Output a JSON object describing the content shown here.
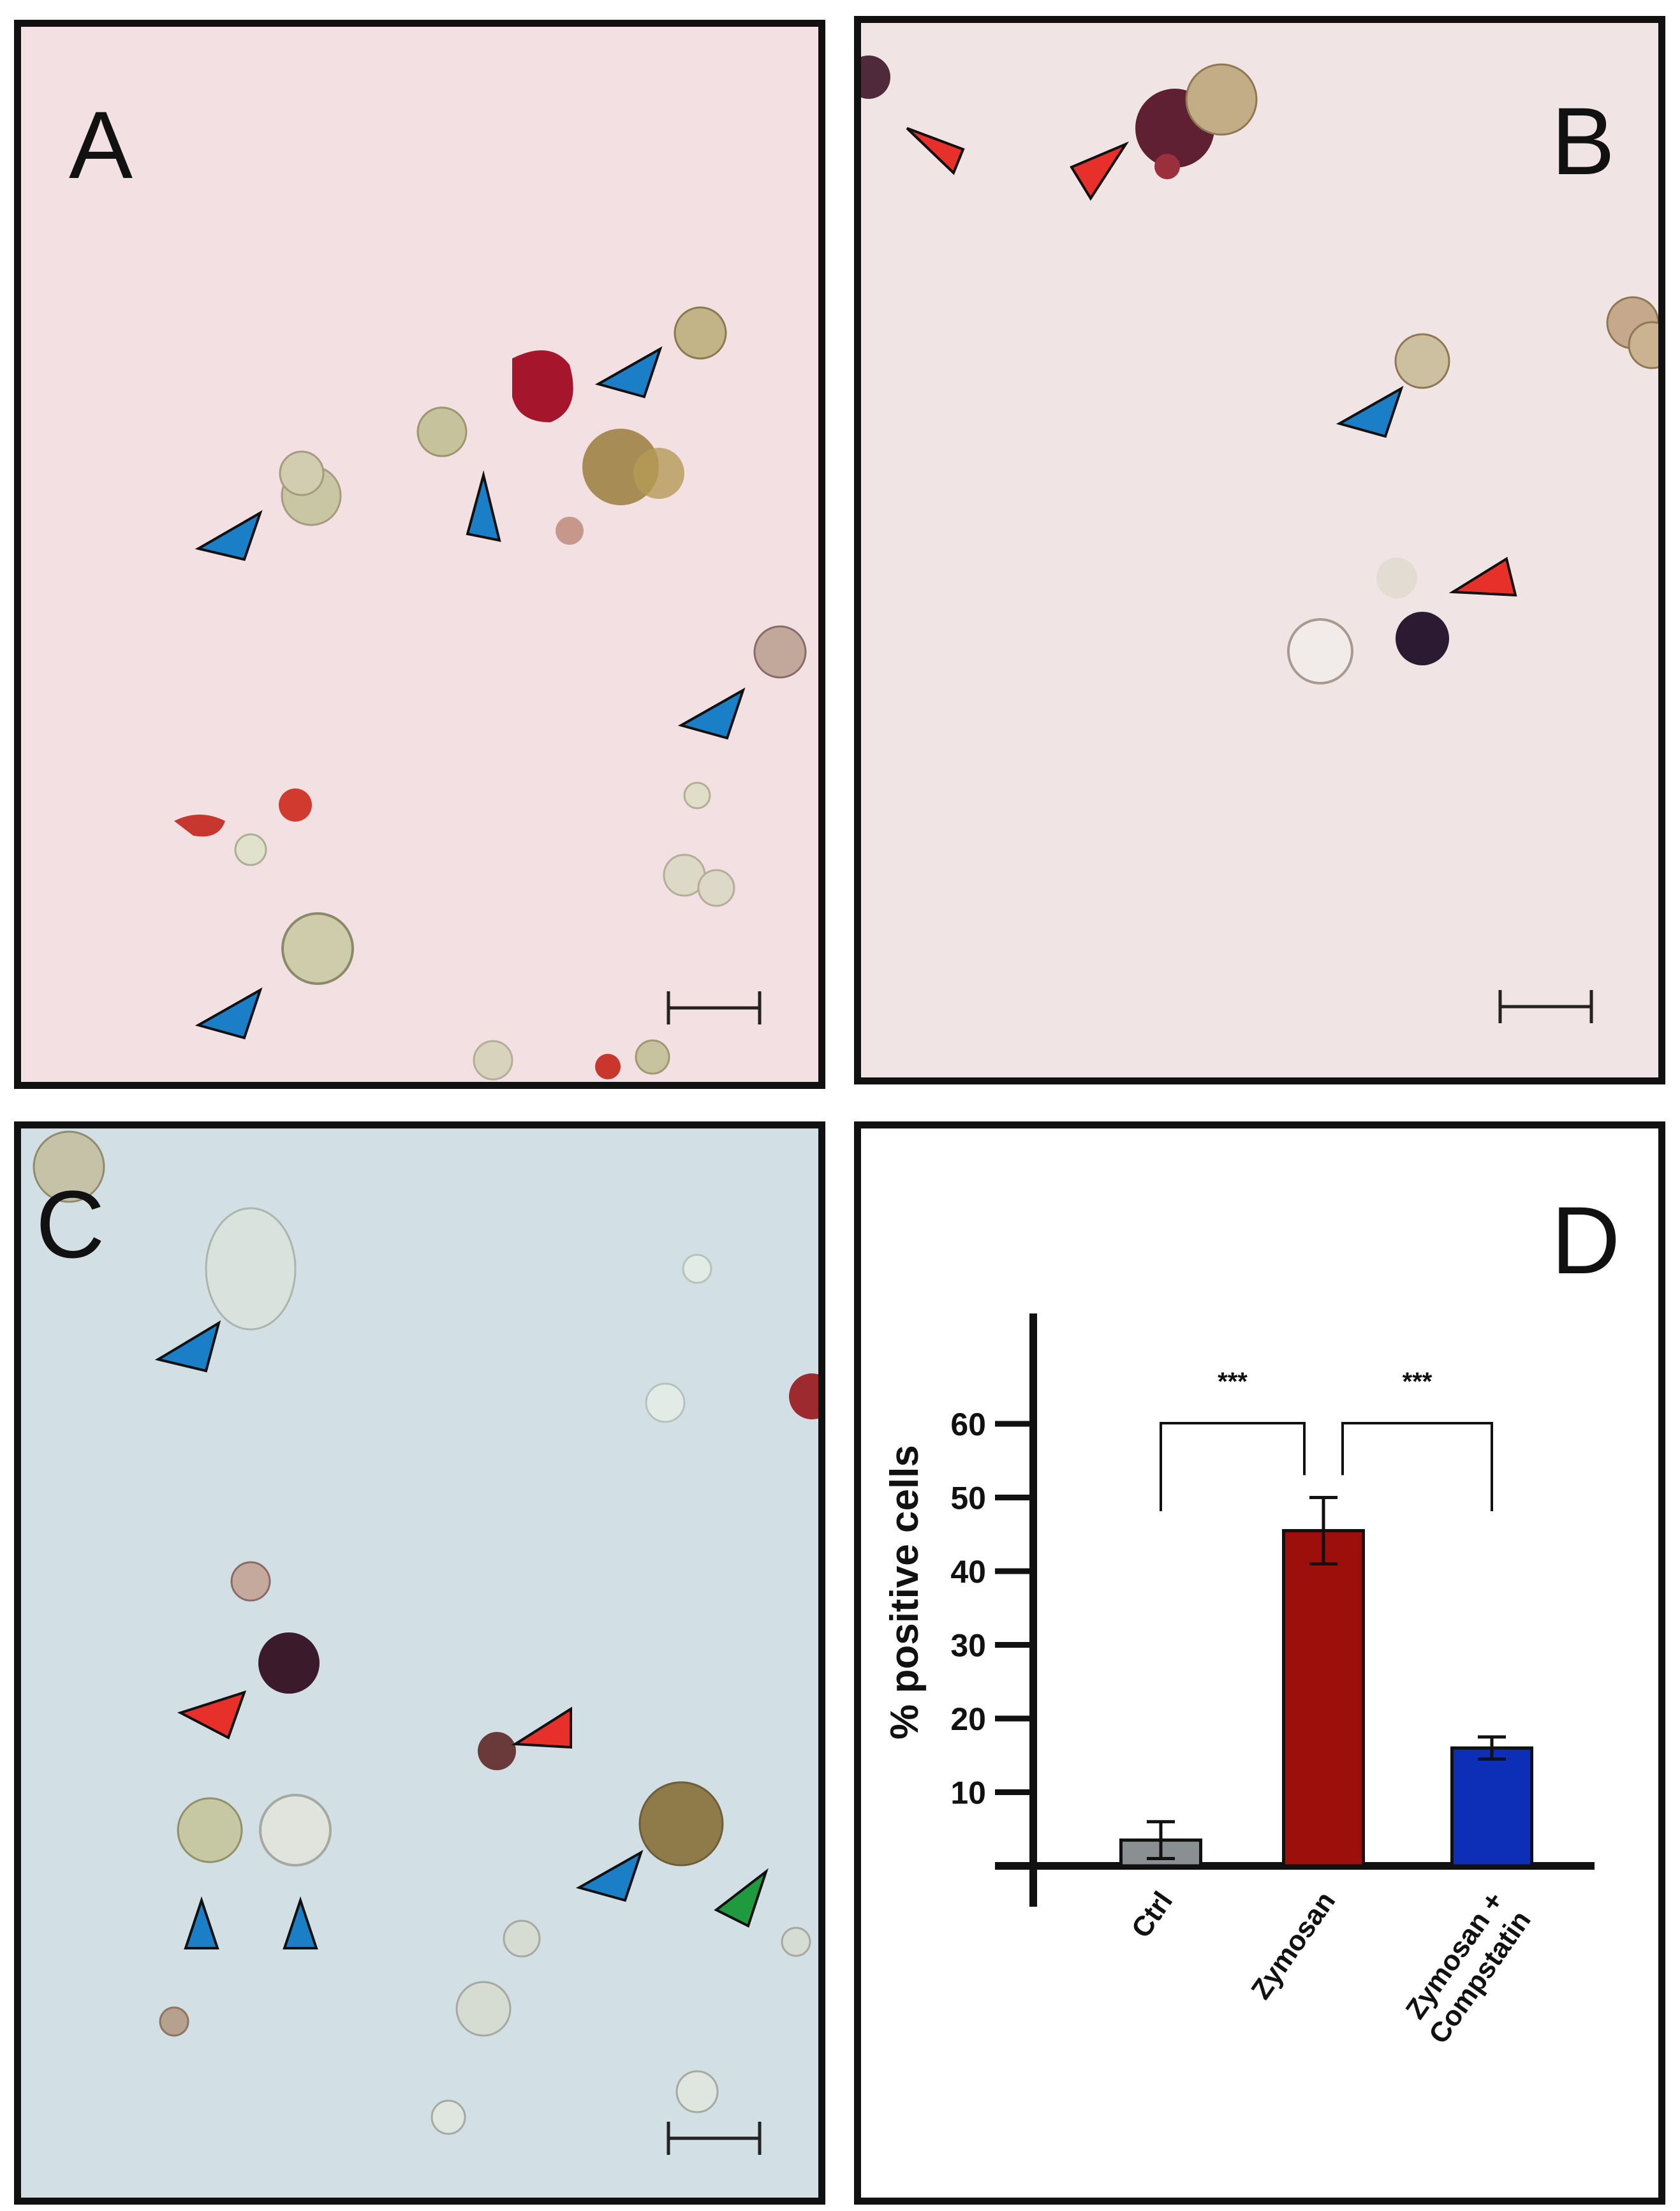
{
  "panels": {
    "a": {
      "letter": "A"
    },
    "b": {
      "letter": "B"
    },
    "c": {
      "letter": "C"
    },
    "d": {
      "letter": "D"
    }
  },
  "colors": {
    "arrow_blue": "#1b7fc7",
    "arrow_red": "#e8302a",
    "arrow_green": "#1f9a3e",
    "bar_ctrl": "#8a8f92",
    "bar_zymosan": "#9c0f0a",
    "bar_compstatin": "#0d2fb8"
  },
  "chart_data": {
    "type": "bar",
    "categories": [
      {
        "line1": "Ctrl",
        "line2": ""
      },
      {
        "line1": "Zymosan",
        "line2": ""
      },
      {
        "line1": "Zymosan +",
        "line2": "Compstatin"
      }
    ],
    "values": [
      3.5,
      45.5,
      16
    ],
    "errors": [
      2.5,
      4.5,
      1.5
    ],
    "bar_colors": [
      "#8a8f92",
      "#9c0f0a",
      "#0d2fb8"
    ],
    "ylabel": "% positive cells",
    "ylim": [
      0,
      65
    ],
    "yticks": [
      10,
      20,
      30,
      40,
      50,
      60
    ],
    "significance": [
      {
        "from": 0,
        "to": 1,
        "label": "***"
      },
      {
        "from": 1,
        "to": 2,
        "label": "***"
      }
    ]
  }
}
